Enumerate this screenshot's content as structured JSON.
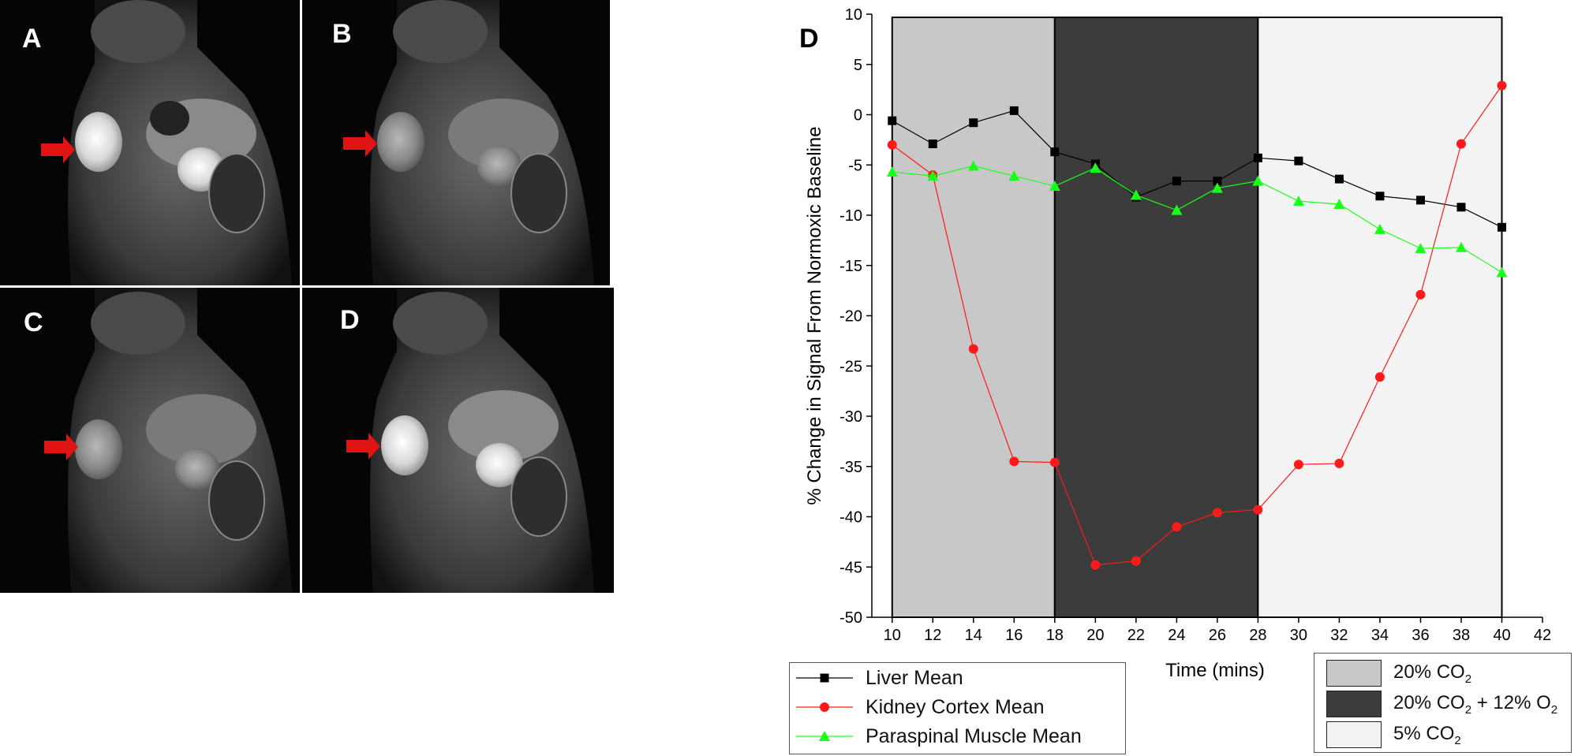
{
  "panels": [
    {
      "label": "A"
    },
    {
      "label": "B"
    },
    {
      "label": "C"
    },
    {
      "label": "D"
    }
  ],
  "colors": {
    "arrow": "#e11414",
    "liver": "#000000",
    "kidney": "#ff1a1a",
    "muscle": "#1aff1a",
    "phase1": "#c8c8c8",
    "phase2": "#3c3c3c",
    "phase3": "#f3f3f3"
  },
  "chart_data": {
    "type": "line",
    "panel_label": "D",
    "xlabel": "Time (mins)",
    "ylabel": "% Change in Signal From Normoxic Baseline",
    "xlim": [
      9,
      42
    ],
    "ylim": [
      -50,
      10
    ],
    "xticks": [
      10,
      12,
      14,
      16,
      18,
      20,
      22,
      24,
      26,
      28,
      30,
      32,
      34,
      36,
      38,
      40,
      42
    ],
    "yticks": [
      10,
      5,
      0,
      -5,
      -10,
      -15,
      -20,
      -25,
      -30,
      -35,
      -40,
      -45,
      -50
    ],
    "x": [
      10,
      12,
      14,
      16,
      18,
      20,
      22,
      24,
      26,
      28,
      30,
      32,
      34,
      36,
      38,
      40
    ],
    "series": [
      {
        "name": "Liver Mean",
        "marker": "square",
        "color": "#000000",
        "values": [
          -0.6,
          -2.9,
          -0.8,
          0.4,
          -3.7,
          -4.9,
          -8.2,
          -6.6,
          -6.6,
          -4.3,
          -4.6,
          -6.4,
          -8.1,
          -8.5,
          -9.2,
          -11.2
        ]
      },
      {
        "name": "Kidney Cortex Mean",
        "marker": "circle",
        "color": "#ff1a1a",
        "values": [
          -3.0,
          -6.0,
          -23.3,
          -34.5,
          -34.6,
          -44.8,
          -44.4,
          -41.0,
          -39.6,
          -39.3,
          -34.8,
          -34.7,
          -26.1,
          -17.9,
          -2.9,
          2.9
        ]
      },
      {
        "name": "Paraspinal Muscle Mean",
        "marker": "triangle",
        "color": "#1aff1a",
        "values": [
          -5.7,
          -6.1,
          -5.1,
          -6.1,
          -7.1,
          -5.3,
          -8.0,
          -9.5,
          -7.3,
          -6.6,
          -8.6,
          -8.9,
          -11.4,
          -13.3,
          -13.2,
          -15.7
        ]
      }
    ],
    "phases": [
      {
        "name": "20% CO2",
        "start": 10,
        "end": 18,
        "color": "#c8c8c8"
      },
      {
        "name": "20% CO2 + 12% O2",
        "start": 18,
        "end": 28,
        "color": "#3c3c3c"
      },
      {
        "name": "5% CO2",
        "start": 28,
        "end": 40,
        "color": "#f3f3f3"
      }
    ],
    "phase_legend": [
      {
        "pre": "20% CO",
        "sub": "2",
        "post": ""
      },
      {
        "pre": "20% CO",
        "sub": "2",
        "post": " + 12% O",
        "sub2": "2"
      },
      {
        "pre": "5% CO",
        "sub": "2",
        "post": ""
      }
    ],
    "legend_position": "bottom-left",
    "grid": false
  }
}
